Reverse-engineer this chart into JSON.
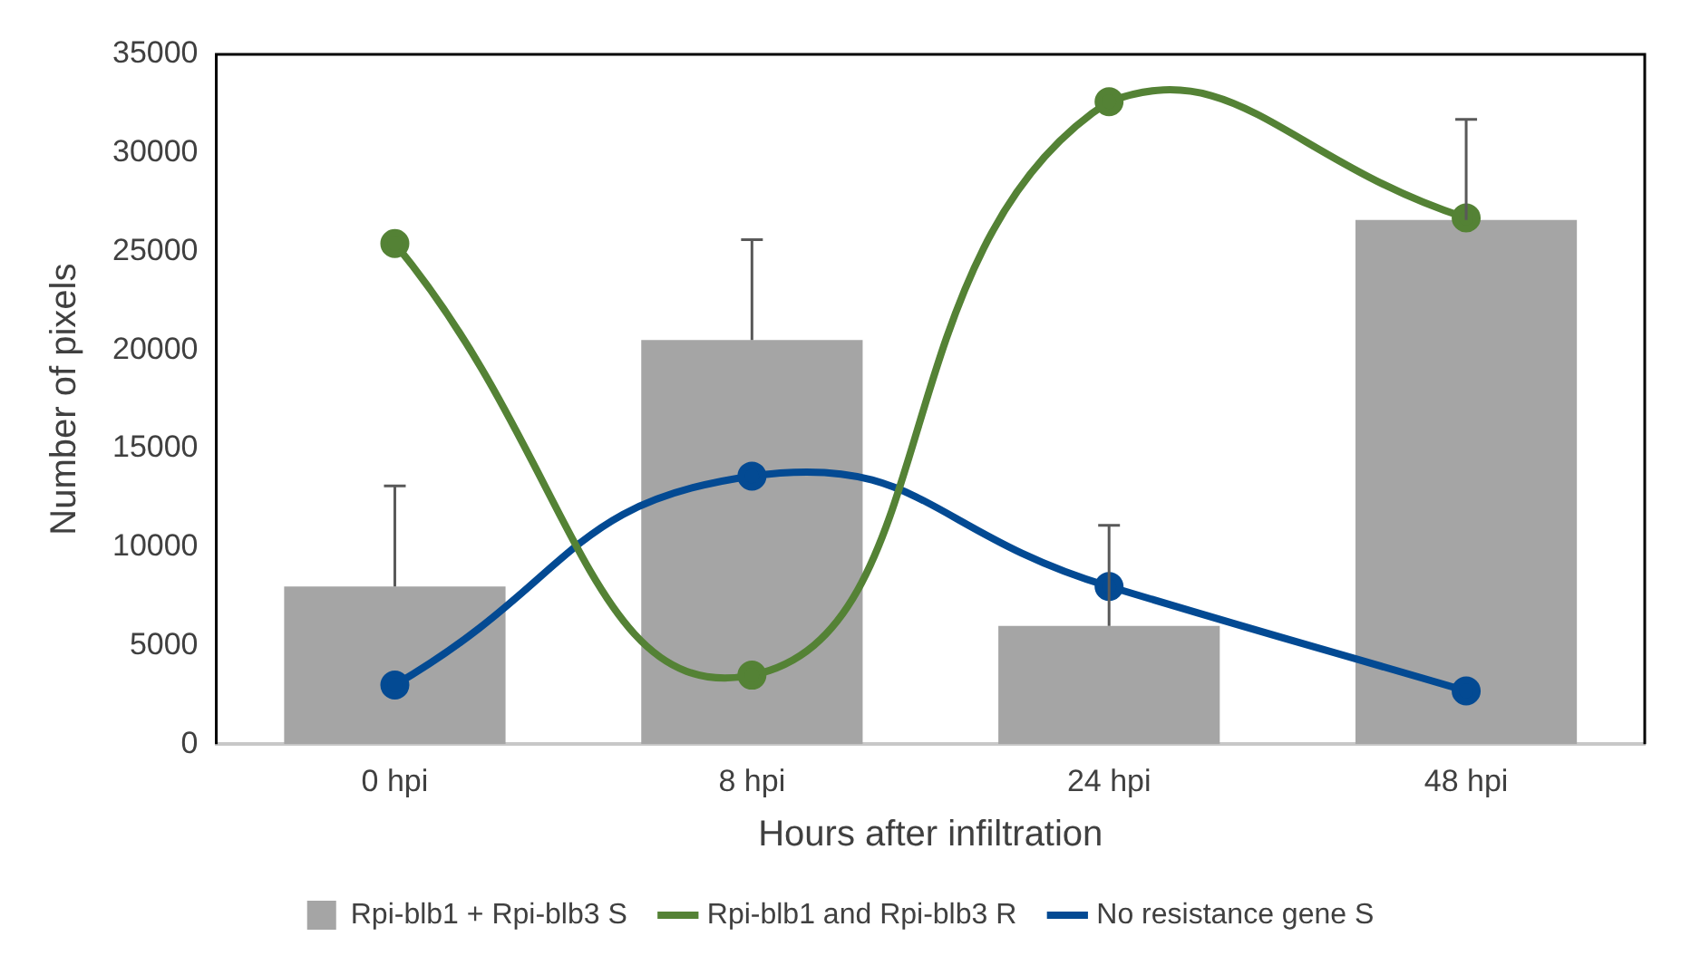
{
  "chart_data": {
    "type": "bar",
    "xlabel": "Hours after infiltration",
    "ylabel": "Number of pixels",
    "categories": [
      "0 hpi",
      "8 hpi",
      "24 hpi",
      "48 hpi"
    ],
    "series": [
      {
        "name": "Rpi-blb1 + Rpi-blb3 S",
        "color": "#a5a5a5",
        "values": [
          8000,
          20500,
          6000,
          26600
        ],
        "errors": [
          [
            8000,
            13100
          ],
          [
            20500,
            25600
          ],
          [
            6000,
            11100
          ],
          [
            26600,
            31700
          ]
        ]
      },
      {
        "name": "Rpi-blb1 and Rpi-blb3 R",
        "type": "line",
        "color": "#548235",
        "values": [
          25400,
          3500,
          32600,
          26700
        ]
      },
      {
        "name": "No resistance gene S",
        "type": "line",
        "color": "#034a93",
        "values": [
          3000,
          13600,
          8000,
          2700
        ]
      }
    ],
    "ylim": [
      0,
      35000
    ],
    "yticks": [
      0,
      5000,
      10000,
      15000,
      20000,
      25000,
      30000,
      35000
    ],
    "grid": false,
    "legend": "bottom",
    "marker": "circle",
    "line_style": "solid"
  }
}
